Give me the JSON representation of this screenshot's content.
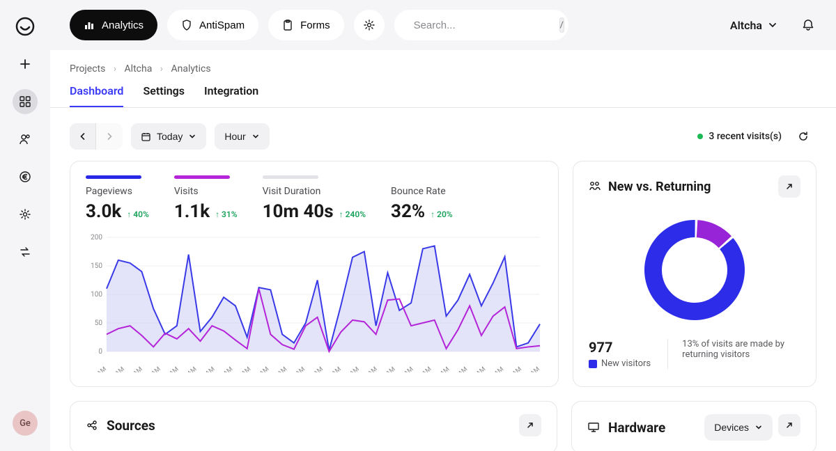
{
  "topbar": {
    "tabs": [
      {
        "label": "Analytics",
        "active": true
      },
      {
        "label": "AntiSpam",
        "active": false
      },
      {
        "label": "Forms",
        "active": false
      }
    ],
    "search_placeholder": "Search...",
    "search_kbd": "/",
    "workspace": "Altcha"
  },
  "sidebar": {
    "avatar_initials": "Ge"
  },
  "breadcrumb": [
    "Projects",
    "Altcha",
    "Analytics"
  ],
  "subtabs": [
    "Dashboard",
    "Settings",
    "Integration"
  ],
  "active_subtab": "Dashboard",
  "toolbar": {
    "date_label": "Today",
    "granularity": "Hour",
    "recent_visits": "3 recent visits(s)"
  },
  "metrics": [
    {
      "label": "Pageviews",
      "value": "3.0k",
      "delta": "40%",
      "bar_color": "#2828e6"
    },
    {
      "label": "Visits",
      "value": "1.1k",
      "delta": "31%",
      "bar_color": "#b424d8"
    },
    {
      "label": "Visit Duration",
      "value": "10m 40s",
      "delta": "240%",
      "bar_color": "#e2e2e8"
    },
    {
      "label": "Bounce Rate",
      "value": "32%",
      "delta": "20%",
      "bar_color": ""
    }
  ],
  "chart": {
    "type": "line-area",
    "ylim": [
      0,
      200
    ],
    "yticks": [
      0,
      50,
      100,
      150,
      200
    ],
    "x_labels": [
      "12AM",
      "12AM",
      "12AM",
      "12AM",
      "12AM",
      "12AM",
      "12AM",
      "12AM",
      "12AM",
      "12AM",
      "12AM",
      "12AM",
      "12AM",
      "12AM",
      "12AM",
      "12AM",
      "12AM",
      "12AM",
      "12AM",
      "12AM",
      "12AM",
      "12AM",
      "12AM",
      "12AM",
      "12AM"
    ],
    "series": [
      {
        "name": "Pageviews",
        "color": "#3939e8",
        "fill": "#c7c9f4",
        "values": [
          110,
          160,
          155,
          140,
          75,
          30,
          45,
          170,
          35,
          60,
          95,
          80,
          25,
          112,
          108,
          30,
          15,
          50,
          125,
          2,
          80,
          165,
          175,
          45,
          138,
          72,
          85,
          180,
          185,
          62,
          90,
          135,
          80,
          120,
          166,
          8,
          15,
          48
        ]
      },
      {
        "name": "Visits",
        "color": "#b424d8",
        "fill": "none",
        "values": [
          30,
          40,
          45,
          28,
          8,
          32,
          22,
          40,
          18,
          45,
          36,
          20,
          5,
          110,
          30,
          12,
          4,
          45,
          60,
          0,
          34,
          55,
          52,
          30,
          90,
          92,
          45,
          50,
          55,
          5,
          38,
          80,
          28,
          62,
          78,
          5,
          8,
          10
        ]
      }
    ],
    "background": "#ffffff",
    "grid_color": "#efeff3"
  },
  "donut": {
    "title": "New vs. Returning",
    "new_pct": 87,
    "returning_pct": 13,
    "count_value": "977",
    "count_label": "New visitors",
    "secondary_text": "13% of visits are made by returning visitors",
    "new_color": "#2d2de9",
    "returning_color": "#9824d8"
  },
  "sources": {
    "title": "Sources"
  },
  "hardware": {
    "title": "Hardware",
    "select": "Devices"
  }
}
